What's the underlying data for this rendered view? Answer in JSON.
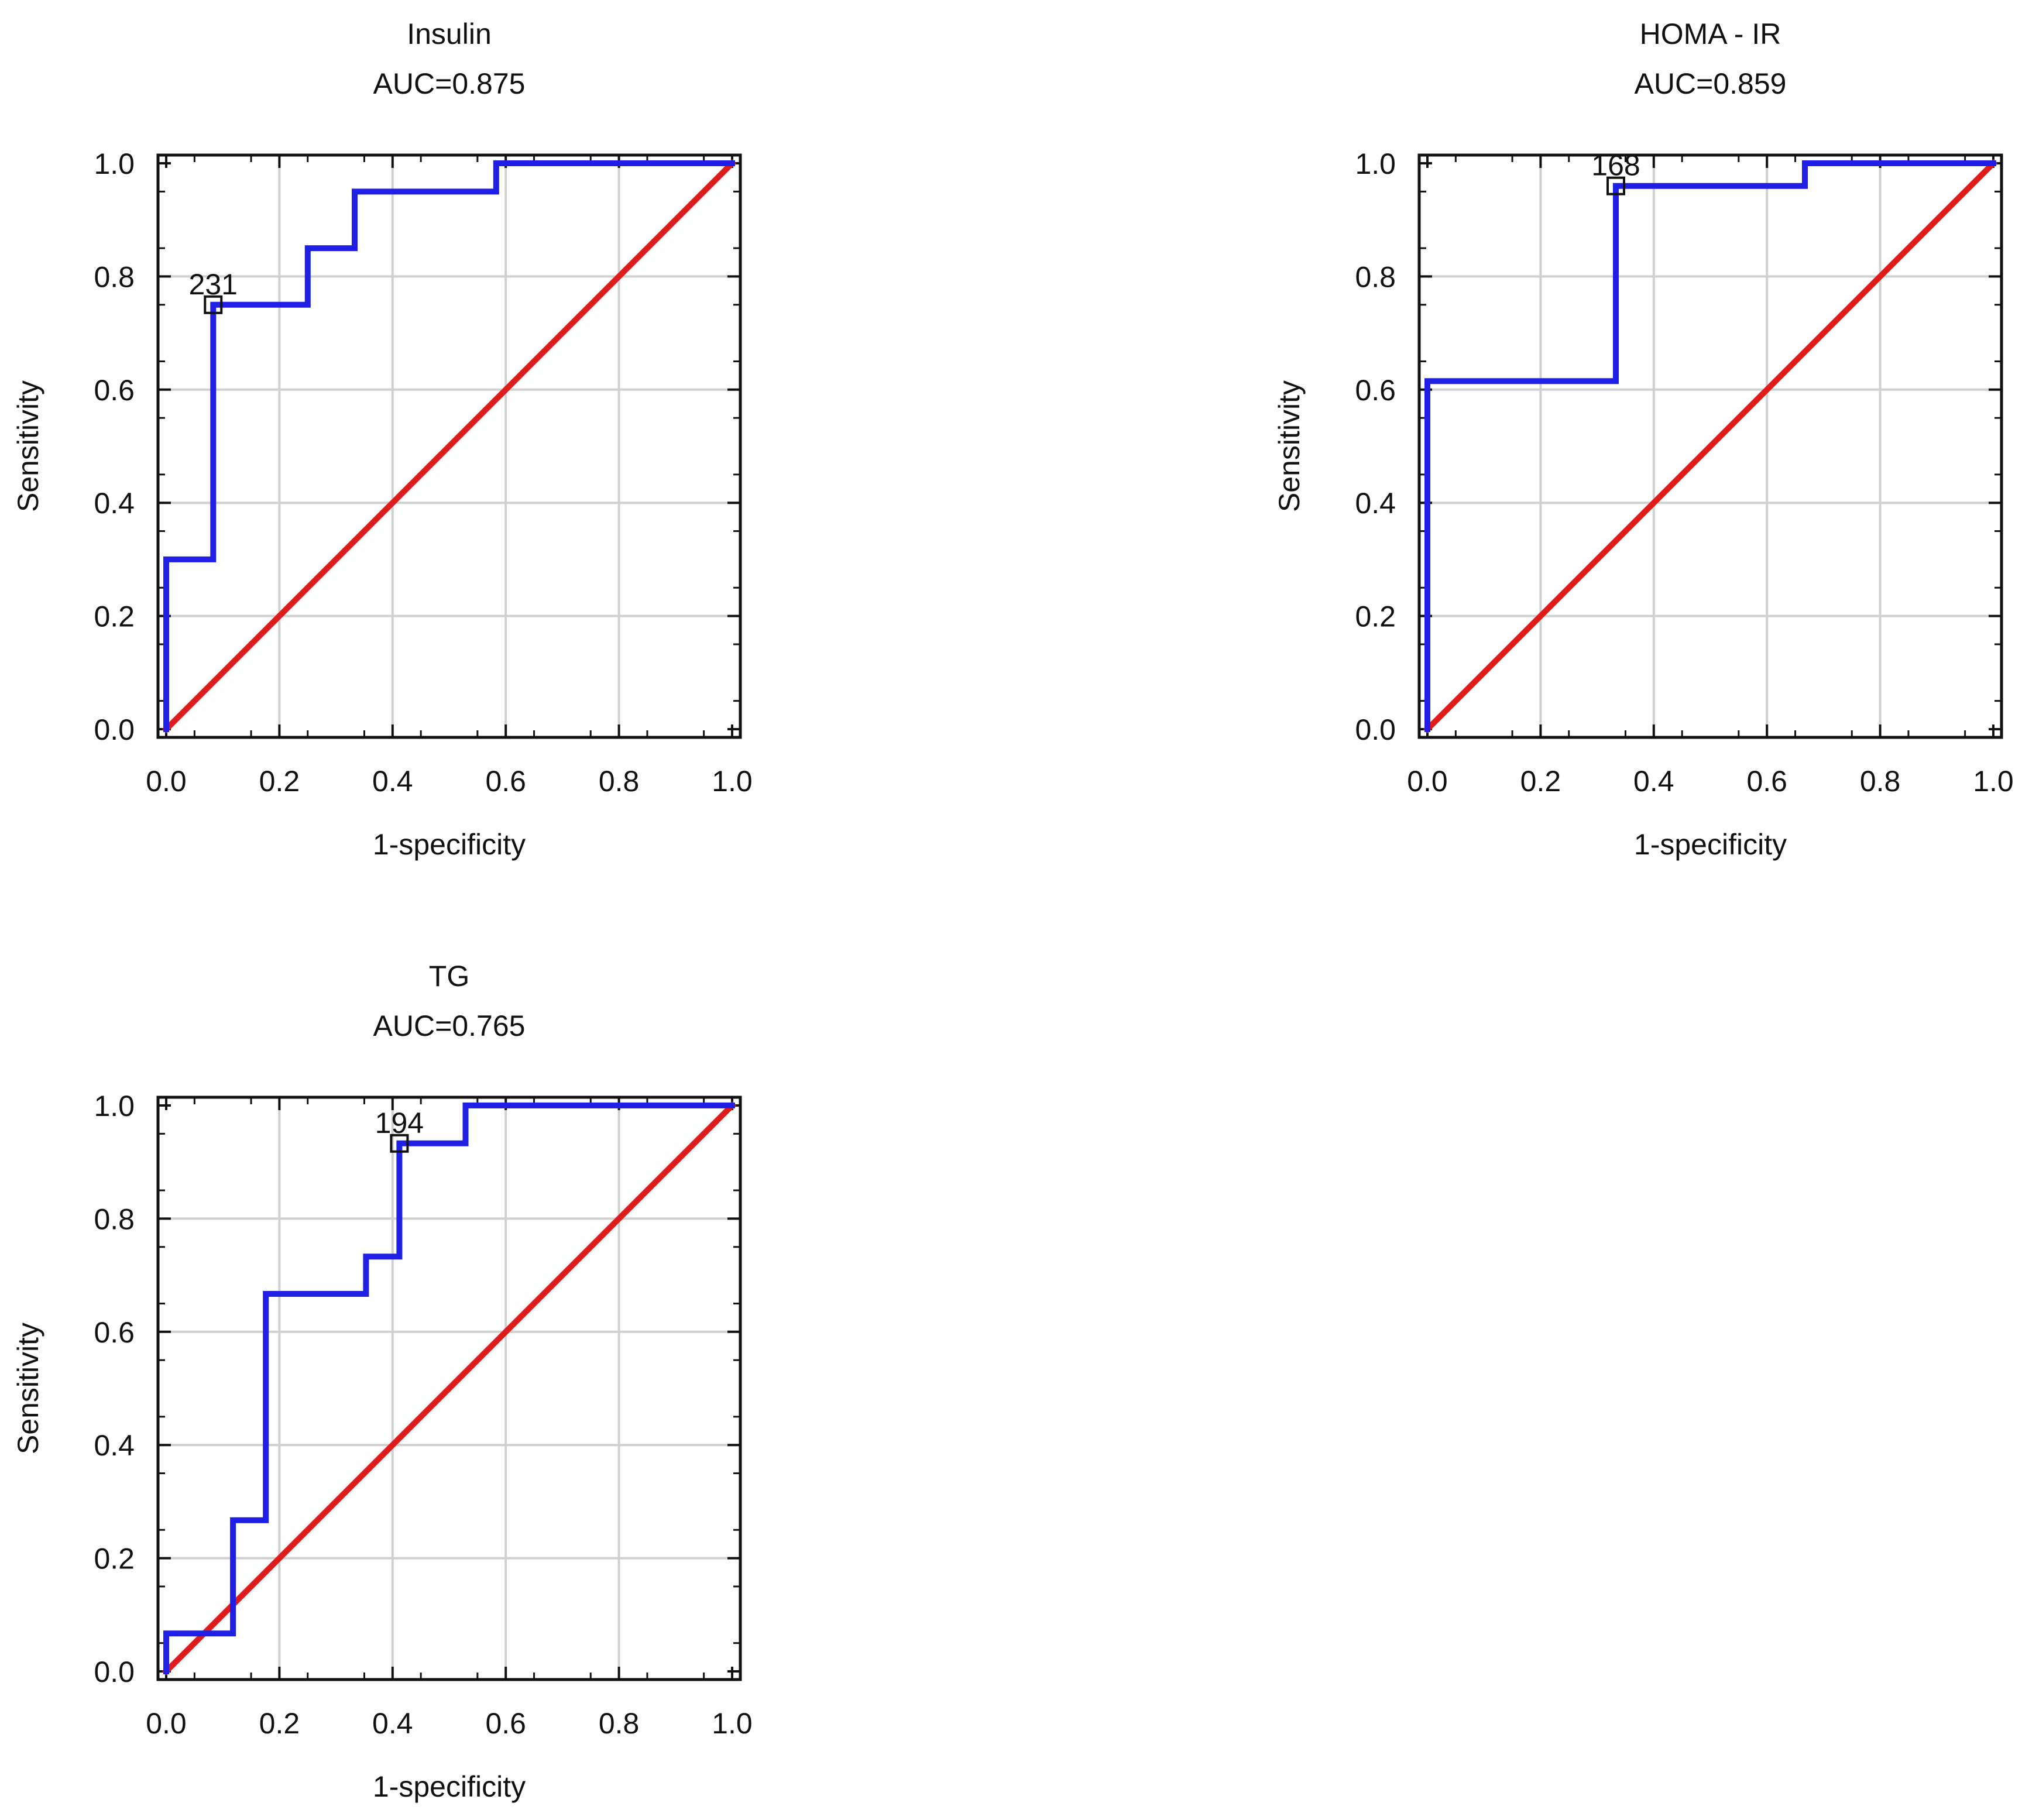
{
  "figure": {
    "description_type": "roc-panels",
    "background": "#ffffff"
  },
  "chart_data": [
    {
      "type": "line",
      "panel": "insulin",
      "title": "Insulin",
      "subtitle": "AUC=0.875",
      "xlabel": "1-specificity",
      "ylabel": "Sensitivity",
      "xlim": [
        0,
        1
      ],
      "ylim": [
        0,
        1
      ],
      "xticks": [
        "0.0",
        "0.2",
        "0.4",
        "0.6",
        "0.8",
        "1.0"
      ],
      "yticks": [
        "0.0",
        "0.2",
        "0.4",
        "0.6",
        "0.8",
        "1.0"
      ],
      "grid": true,
      "series": [
        {
          "name": "ROC",
          "color": "#1f1fe6",
          "points": [
            [
              0,
              0
            ],
            [
              0,
              0.3
            ],
            [
              0.083,
              0.3
            ],
            [
              0.083,
              0.75
            ],
            [
              0.25,
              0.75
            ],
            [
              0.25,
              0.85
            ],
            [
              0.333,
              0.85
            ],
            [
              0.333,
              0.95
            ],
            [
              0.583,
              0.95
            ],
            [
              0.583,
              1.0
            ],
            [
              1.0,
              1.0
            ]
          ]
        },
        {
          "name": "Reference",
          "color": "#e01b1b",
          "points": [
            [
              0,
              0
            ],
            [
              1,
              1
            ]
          ]
        }
      ],
      "cutoff": {
        "x": 0.083,
        "y": 0.75,
        "label": "231"
      }
    },
    {
      "type": "line",
      "panel": "homa-ir",
      "title": "HOMA - IR",
      "subtitle": "AUC=0.859",
      "xlabel": "1-specificity",
      "ylabel": "Sensitivity",
      "xlim": [
        0,
        1
      ],
      "ylim": [
        0,
        1
      ],
      "xticks": [
        "0.0",
        "0.2",
        "0.4",
        "0.6",
        "0.8",
        "1.0"
      ],
      "yticks": [
        "0.0",
        "0.2",
        "0.4",
        "0.6",
        "0.8",
        "1.0"
      ],
      "grid": true,
      "series": [
        {
          "name": "ROC",
          "color": "#1f1fe6",
          "points": [
            [
              0,
              0
            ],
            [
              0,
              0.615
            ],
            [
              0.333,
              0.615
            ],
            [
              0.333,
              0.96
            ],
            [
              0.667,
              0.96
            ],
            [
              0.667,
              1.0
            ],
            [
              1.0,
              1.0
            ]
          ]
        },
        {
          "name": "Reference",
          "color": "#e01b1b",
          "points": [
            [
              0,
              0
            ],
            [
              1,
              1
            ]
          ]
        }
      ],
      "cutoff": {
        "x": 0.333,
        "y": 0.96,
        "label": "168"
      }
    },
    {
      "type": "line",
      "panel": "tg",
      "title": "TG",
      "subtitle": "AUC=0.765",
      "xlabel": "1-specificity",
      "ylabel": "Sensitivity",
      "xlim": [
        0,
        1
      ],
      "ylim": [
        0,
        1
      ],
      "xticks": [
        "0.0",
        "0.2",
        "0.4",
        "0.6",
        "0.8",
        "1.0"
      ],
      "yticks": [
        "0.0",
        "0.2",
        "0.4",
        "0.6",
        "0.8",
        "1.0"
      ],
      "grid": true,
      "series": [
        {
          "name": "ROC",
          "color": "#1f1fe6",
          "points": [
            [
              0,
              0
            ],
            [
              0,
              0.067
            ],
            [
              0.118,
              0.067
            ],
            [
              0.118,
              0.267
            ],
            [
              0.176,
              0.267
            ],
            [
              0.176,
              0.667
            ],
            [
              0.353,
              0.667
            ],
            [
              0.353,
              0.733
            ],
            [
              0.412,
              0.733
            ],
            [
              0.412,
              0.933
            ],
            [
              0.529,
              0.933
            ],
            [
              0.529,
              1.0
            ],
            [
              1.0,
              1.0
            ]
          ]
        },
        {
          "name": "Reference",
          "color": "#e01b1b",
          "points": [
            [
              0,
              0
            ],
            [
              1,
              1
            ]
          ]
        }
      ],
      "cutoff": {
        "x": 0.412,
        "y": 0.933,
        "label": "194"
      }
    }
  ]
}
